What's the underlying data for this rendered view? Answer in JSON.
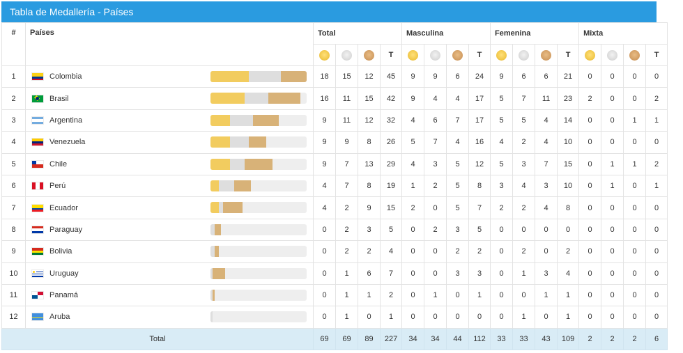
{
  "title": "Tabla de Medallería - Países",
  "headers": {
    "rank": "#",
    "country": "Países",
    "groups": [
      "Total",
      "Masculina",
      "Femenina",
      "Mixta"
    ],
    "t_label": "T"
  },
  "medal_icons": {
    "gold": "gold-medal-icon",
    "silver": "silver-medal-icon",
    "bronze": "bronze-medal-icon"
  },
  "colors": {
    "header": "#2a9be0",
    "gold": "#f2cc5f",
    "silver": "#dedede",
    "bronze": "#d8b278",
    "total_row": "#d9ecf6"
  },
  "rows": [
    {
      "rank": "1",
      "country": "Colombia",
      "flag": "colombia-flag-icon",
      "total": [
        "18",
        "15",
        "12",
        "45"
      ],
      "masculina": [
        "9",
        "9",
        "6",
        "24"
      ],
      "femenina": [
        "9",
        "6",
        "6",
        "21"
      ],
      "mixta": [
        "0",
        "0",
        "0",
        "0"
      ]
    },
    {
      "rank": "2",
      "country": "Brasil",
      "flag": "brazil-flag-icon",
      "total": [
        "16",
        "11",
        "15",
        "42"
      ],
      "masculina": [
        "9",
        "4",
        "4",
        "17"
      ],
      "femenina": [
        "5",
        "7",
        "11",
        "23"
      ],
      "mixta": [
        "2",
        "0",
        "0",
        "2"
      ]
    },
    {
      "rank": "3",
      "country": "Argentina",
      "flag": "argentina-flag-icon",
      "total": [
        "9",
        "11",
        "12",
        "32"
      ],
      "masculina": [
        "4",
        "6",
        "7",
        "17"
      ],
      "femenina": [
        "5",
        "5",
        "4",
        "14"
      ],
      "mixta": [
        "0",
        "0",
        "1",
        "1"
      ]
    },
    {
      "rank": "4",
      "country": "Venezuela",
      "flag": "venezuela-flag-icon",
      "total": [
        "9",
        "9",
        "8",
        "26"
      ],
      "masculina": [
        "5",
        "7",
        "4",
        "16"
      ],
      "femenina": [
        "4",
        "2",
        "4",
        "10"
      ],
      "mixta": [
        "0",
        "0",
        "0",
        "0"
      ]
    },
    {
      "rank": "5",
      "country": "Chile",
      "flag": "chile-flag-icon",
      "total": [
        "9",
        "7",
        "13",
        "29"
      ],
      "masculina": [
        "4",
        "3",
        "5",
        "12"
      ],
      "femenina": [
        "5",
        "3",
        "7",
        "15"
      ],
      "mixta": [
        "0",
        "1",
        "1",
        "2"
      ]
    },
    {
      "rank": "6",
      "country": "Perú",
      "flag": "peru-flag-icon",
      "total": [
        "4",
        "7",
        "8",
        "19"
      ],
      "masculina": [
        "1",
        "2",
        "5",
        "8"
      ],
      "femenina": [
        "3",
        "4",
        "3",
        "10"
      ],
      "mixta": [
        "0",
        "1",
        "0",
        "1"
      ]
    },
    {
      "rank": "7",
      "country": "Ecuador",
      "flag": "ecuador-flag-icon",
      "total": [
        "4",
        "2",
        "9",
        "15"
      ],
      "masculina": [
        "2",
        "0",
        "5",
        "7"
      ],
      "femenina": [
        "2",
        "2",
        "4",
        "8"
      ],
      "mixta": [
        "0",
        "0",
        "0",
        "0"
      ]
    },
    {
      "rank": "8",
      "country": "Paraguay",
      "flag": "paraguay-flag-icon",
      "total": [
        "0",
        "2",
        "3",
        "5"
      ],
      "masculina": [
        "0",
        "2",
        "3",
        "5"
      ],
      "femenina": [
        "0",
        "0",
        "0",
        "0"
      ],
      "mixta": [
        "0",
        "0",
        "0",
        "0"
      ]
    },
    {
      "rank": "9",
      "country": "Bolivia",
      "flag": "bolivia-flag-icon",
      "total": [
        "0",
        "2",
        "2",
        "4"
      ],
      "masculina": [
        "0",
        "0",
        "2",
        "2"
      ],
      "femenina": [
        "0",
        "2",
        "0",
        "2"
      ],
      "mixta": [
        "0",
        "0",
        "0",
        "0"
      ]
    },
    {
      "rank": "10",
      "country": "Uruguay",
      "flag": "uruguay-flag-icon",
      "total": [
        "0",
        "1",
        "6",
        "7"
      ],
      "masculina": [
        "0",
        "0",
        "3",
        "3"
      ],
      "femenina": [
        "0",
        "1",
        "3",
        "4"
      ],
      "mixta": [
        "0",
        "0",
        "0",
        "0"
      ]
    },
    {
      "rank": "11",
      "country": "Panamá",
      "flag": "panama-flag-icon",
      "total": [
        "0",
        "1",
        "1",
        "2"
      ],
      "masculina": [
        "0",
        "1",
        "0",
        "1"
      ],
      "femenina": [
        "0",
        "0",
        "1",
        "1"
      ],
      "mixta": [
        "0",
        "0",
        "0",
        "0"
      ]
    },
    {
      "rank": "12",
      "country": "Aruba",
      "flag": "aruba-flag-icon",
      "total": [
        "0",
        "1",
        "0",
        "1"
      ],
      "masculina": [
        "0",
        "0",
        "0",
        "0"
      ],
      "femenina": [
        "0",
        "1",
        "0",
        "1"
      ],
      "mixta": [
        "0",
        "0",
        "0",
        "0"
      ]
    }
  ],
  "totals": {
    "label": "Total",
    "total": [
      "69",
      "69",
      "89",
      "227"
    ],
    "masculina": [
      "34",
      "34",
      "44",
      "112"
    ],
    "femenina": [
      "33",
      "33",
      "43",
      "109"
    ],
    "mixta": [
      "2",
      "2",
      "2",
      "6"
    ]
  },
  "bar_scale_max": 45
}
